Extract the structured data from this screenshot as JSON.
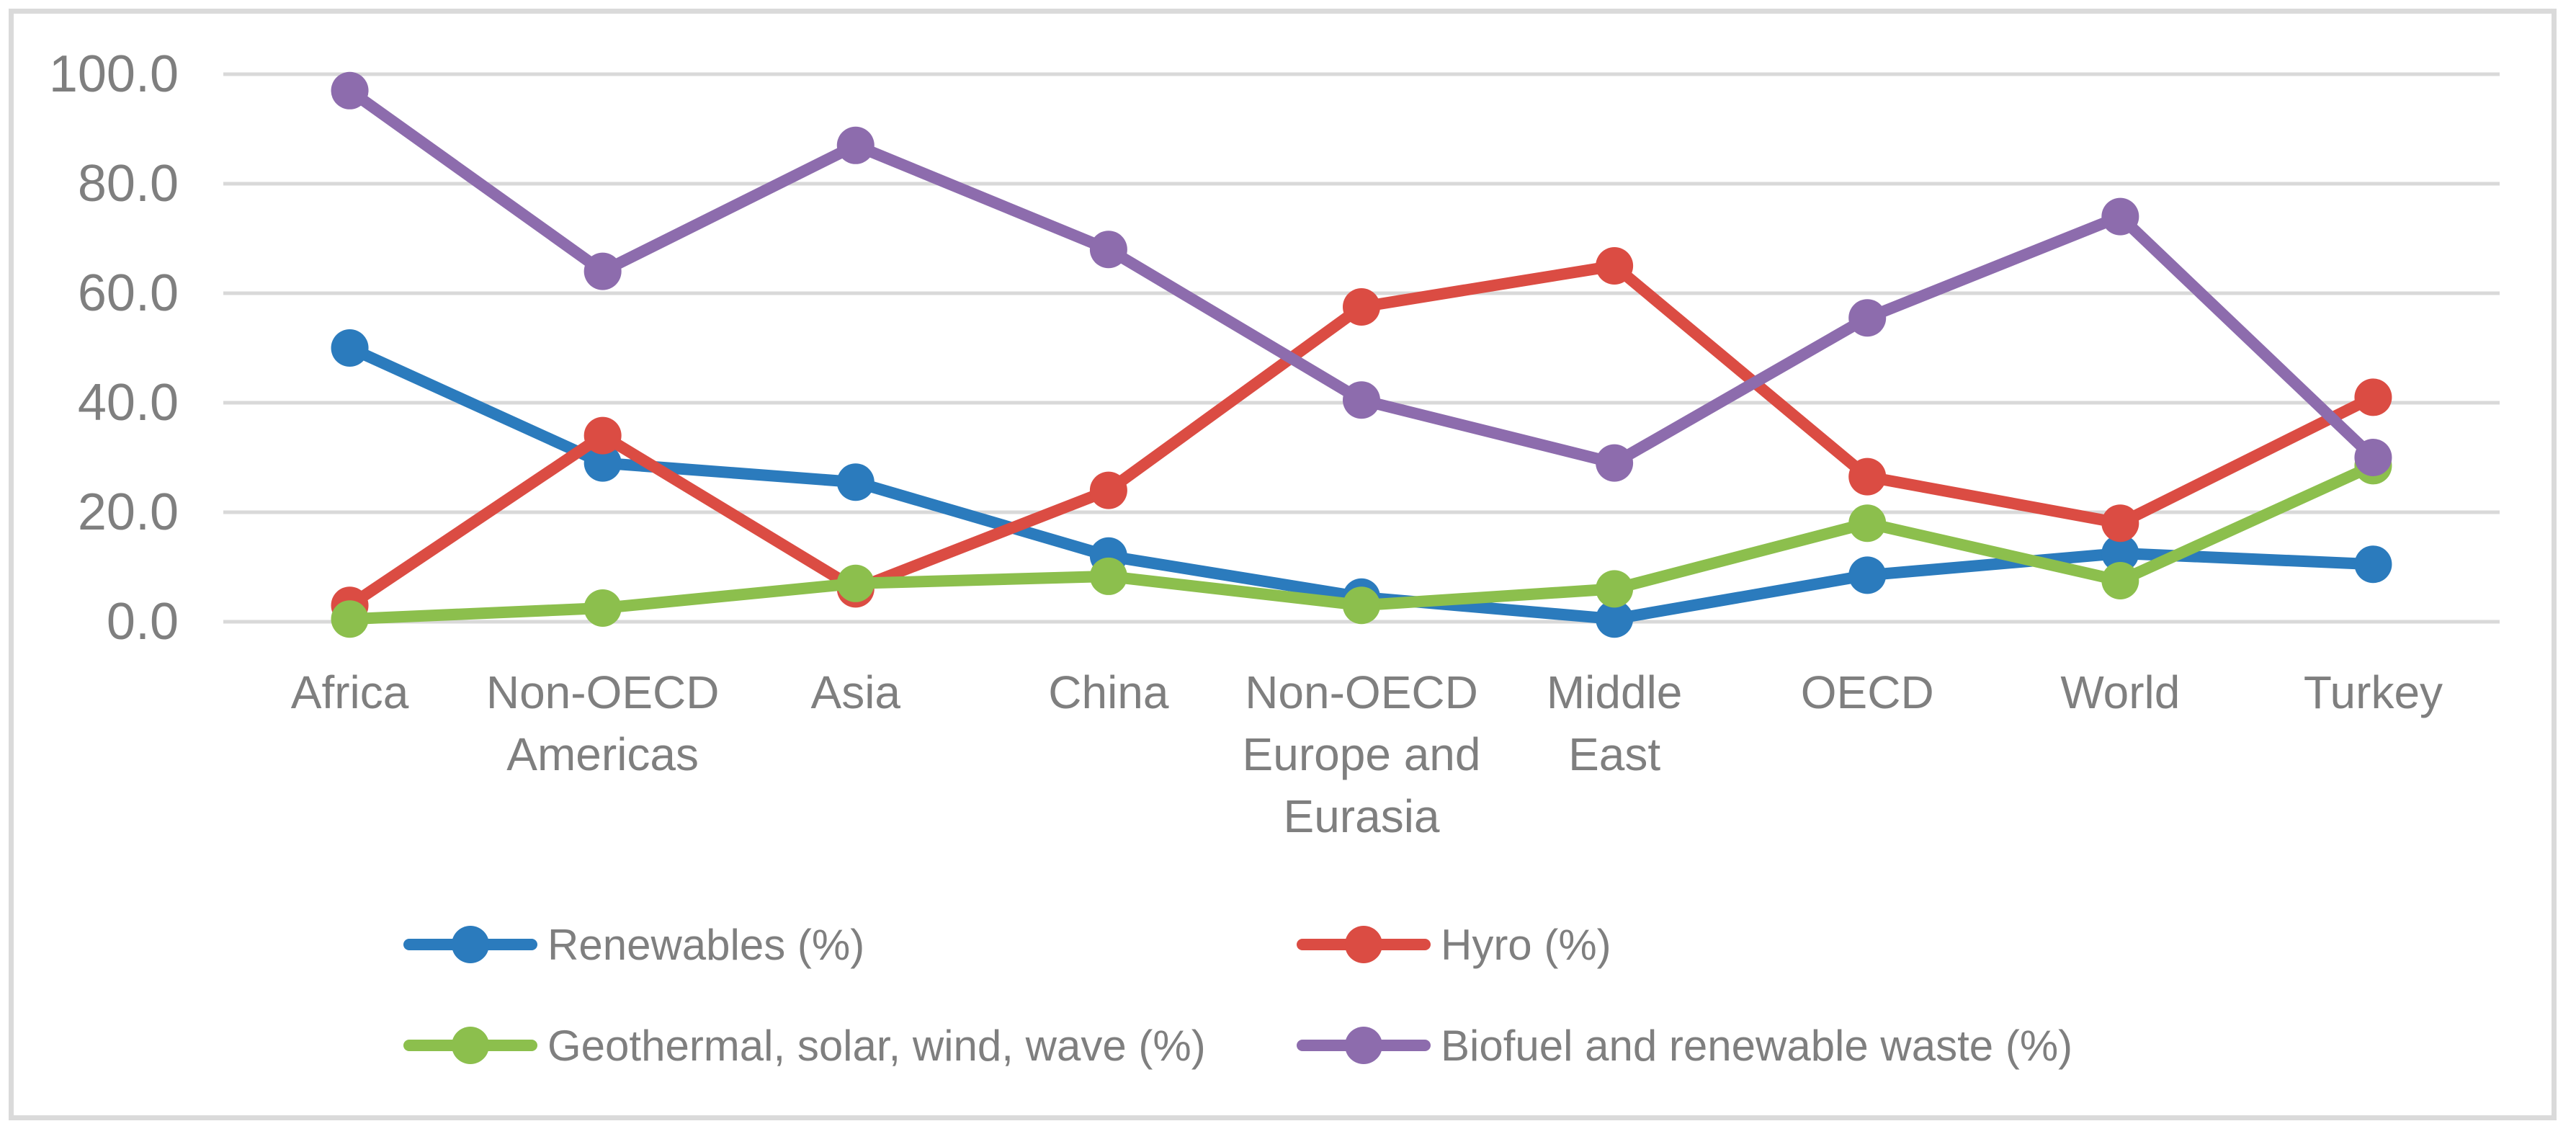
{
  "chart_data": {
    "type": "line",
    "title": "",
    "xlabel": "",
    "ylabel": "",
    "categories": [
      "Africa",
      "Non-OECD\nAmericas",
      "Asia",
      "China",
      "Non-OECD\nEurope and\nEurasia",
      "Middle\nEast",
      "OECD",
      "World",
      "Turkey"
    ],
    "series": [
      {
        "name": "Renewables (%)",
        "color": "#2b7bbd",
        "values": [
          50.0,
          29.0,
          25.5,
          12.0,
          4.5,
          0.5,
          8.5,
          12.5,
          10.5
        ]
      },
      {
        "name": "Hyro (%)",
        "color": "#db4c43",
        "values": [
          3.0,
          34.0,
          6.0,
          24.0,
          57.5,
          65.0,
          26.5,
          18.0,
          41.0
        ]
      },
      {
        "name": "Geothermal, solar, wind, wave (%)",
        "color": "#8cbf4d",
        "values": [
          0.5,
          2.5,
          7.0,
          8.3,
          3.0,
          6.0,
          18.0,
          7.5,
          28.5
        ]
      },
      {
        "name": "Biofuel and renewable waste (%)",
        "color": "#8d6cad",
        "values": [
          97.0,
          64.0,
          87.0,
          68.0,
          40.5,
          29.0,
          55.5,
          74.0,
          30.0
        ]
      }
    ],
    "ylim": [
      0,
      100
    ],
    "ytick_labels": [
      "0.0",
      "20.0",
      "40.0",
      "60.0",
      "80.0",
      "100.0"
    ],
    "grid": true,
    "legend_position": "bottom"
  },
  "colors": {
    "grid": "#d9d9d9",
    "frame": "#dadada",
    "axis_text": "#7f7f7f",
    "background": "#ffffff"
  }
}
